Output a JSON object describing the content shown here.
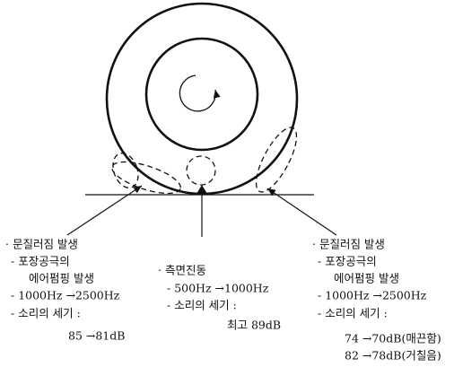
{
  "left_note": {
    "lines": [
      "· 문질러짐 발생",
      "- 포장공극의",
      "에어펌핑 발생",
      "- 1000Hz →2500Hz",
      "- 소리의 세기 :",
      "85 →81dB"
    ]
  },
  "center_note": {
    "lines": [
      "· 측면진동",
      "- 500Hz →1000Hz",
      "- 소리의 세기 :",
      "최고 89dB"
    ]
  },
  "right_note": {
    "lines": [
      "· 문질러짐 발생",
      "- 포장공극의",
      "에어펌핑 발생",
      "- 1000Hz →2500Hz",
      "- 소리의 세기 :",
      "74 →70dB(매끈함)",
      "82 →78dB(거칠음)"
    ]
  }
}
